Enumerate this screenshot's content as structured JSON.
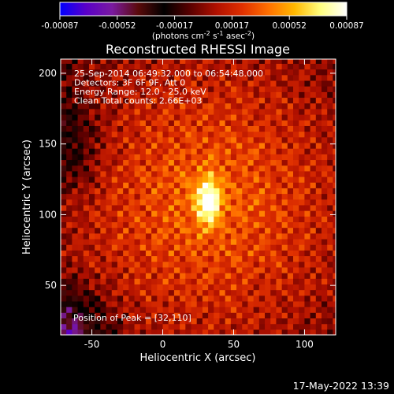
{
  "chart_data": {
    "type": "heatmap",
    "title": "Reconstructed RHESSI Image",
    "xlabel": "Heliocentric X (arcsec)",
    "ylabel": "Heliocentric Y (arcsec)",
    "xlim": [
      -72,
      122
    ],
    "ylim": [
      15,
      210
    ],
    "xticks": [
      -50,
      0,
      50,
      100
    ],
    "yticks": [
      50,
      100,
      150,
      200
    ],
    "peak": [
      32,
      110
    ],
    "colorbar": {
      "min": -0.00087,
      "max": 0.00087,
      "ticks": [
        "-0.00087",
        "-0.00052",
        "-0.00017",
        "0.00017",
        "0.00052",
        "0.00087"
      ],
      "unit_base": "(photons cm",
      "unit_sup1": "-2",
      "unit_mid1": " s",
      "unit_sup2": "-1",
      "unit_mid2": " asec",
      "unit_sup3": "-2",
      "unit_end": ")",
      "colors": [
        "#0000ff",
        "#5a00c8",
        "#7a1aa0",
        "#5a0a0a",
        "#000000",
        "#5a0000",
        "#b01000",
        "#e03000",
        "#ff7000",
        "#ffb800",
        "#ffff80",
        "#ffffff"
      ]
    },
    "annotations": [
      "25-Sep-2014 06:49:32.000 to 06:54:48.000",
      "Detectors: 3F 6F 9F, Att 0",
      "Energy Range: 12.0 - 25.0 keV",
      "Clean    Total counts: 2.66E+03"
    ],
    "peak_label": "Position of Peak = [32,110]"
  },
  "footer": {
    "timestamp": "17-May-2022 13:39"
  }
}
